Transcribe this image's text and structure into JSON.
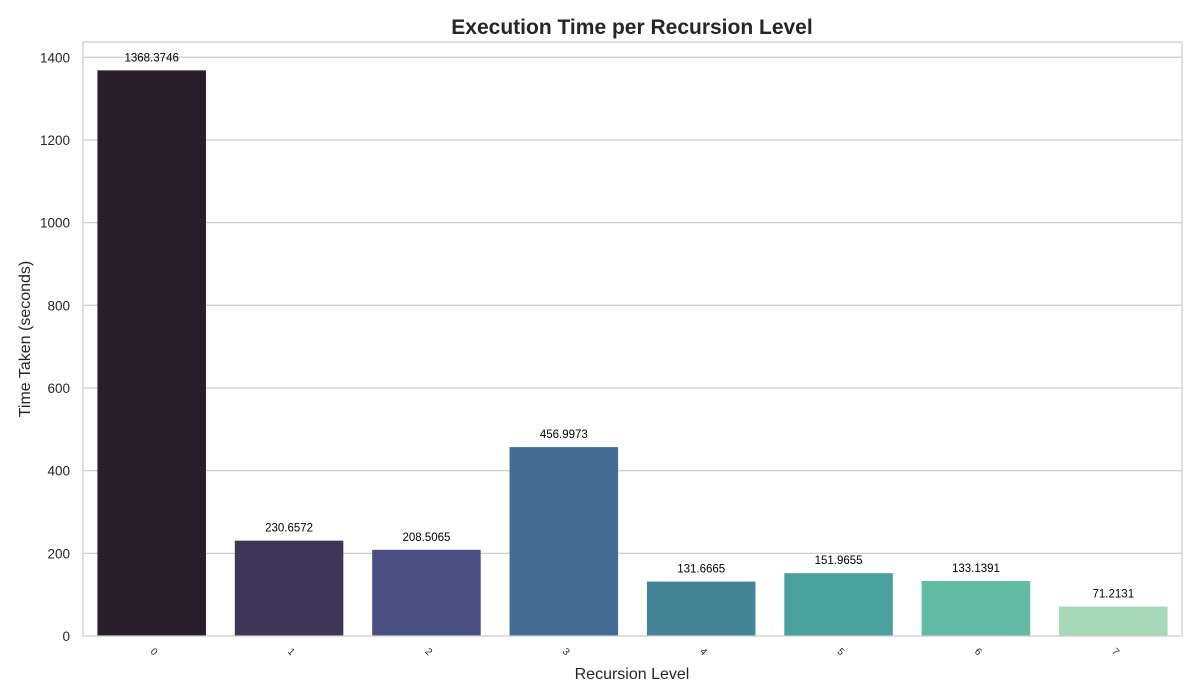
{
  "chart_data": {
    "type": "bar",
    "title": "Execution Time per Recursion Level",
    "xlabel": "Recursion Level",
    "ylabel": "Time Taken (seconds)",
    "categories": [
      "0",
      "1",
      "2",
      "3",
      "4",
      "5",
      "6",
      "7"
    ],
    "values": [
      1368.3746,
      230.6572,
      208.5065,
      456.9973,
      131.6665,
      151.9655,
      133.1391,
      71.2131
    ],
    "data_labels": [
      "1368.3746",
      "230.6572",
      "208.5065",
      "456.9973",
      "131.6665",
      "151.9655",
      "133.1391",
      "71.2131"
    ],
    "yticks": [
      "0",
      "200",
      "400",
      "600",
      "800",
      "1000",
      "1200",
      "1400"
    ],
    "ylim": [
      0,
      1437
    ],
    "grid": true,
    "x_tick_rotation": 45,
    "colors": [
      "#2a1d2e",
      "#3f3658",
      "#4a5084",
      "#456c94",
      "#438496",
      "#4aa09c",
      "#63bba5",
      "#a7d8b8"
    ]
  }
}
